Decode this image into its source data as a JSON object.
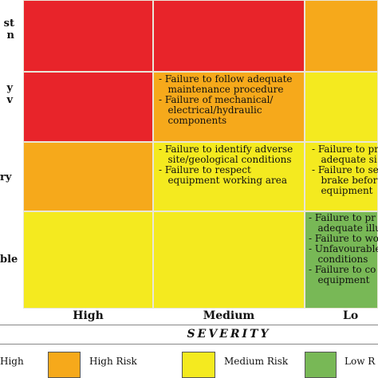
{
  "colors": {
    "high": "#e8242a",
    "high_med": "#f6a91b",
    "medium": "#f4ea1f",
    "low": "#78b856",
    "border": "#e9e6d8"
  },
  "rows": [
    {
      "label": "st\nn"
    },
    {
      "label": "y\nv"
    },
    {
      "label": "ry"
    },
    {
      "label": "ble"
    }
  ],
  "cells": {
    "r0c0": {
      "risk": "high",
      "text": ""
    },
    "r0c1": {
      "risk": "high",
      "text": ""
    },
    "r0c2": {
      "risk": "high_med",
      "text": ""
    },
    "r1c0": {
      "risk": "high",
      "text": ""
    },
    "r1c1": {
      "risk": "high_med",
      "text": "- Failure to follow adequate\n   maintenance procedure\n- Failure of mechanical/\n   electrical/hydraulic\n   components"
    },
    "r1c2": {
      "risk": "medium",
      "text": ""
    },
    "r2c0": {
      "risk": "high_med",
      "text": ""
    },
    "r2c1": {
      "risk": "medium",
      "text": "- Failure to identify adverse\n   site/geological conditions\n- Failure to respect\n   equipment working area"
    },
    "r2c2": {
      "risk": "medium",
      "text": "- Failure to pr\n   adequate si\n- Failure to se\n   brake before\n   equipment"
    },
    "r3c0": {
      "risk": "medium",
      "text": ""
    },
    "r3c1": {
      "risk": "medium",
      "text": ""
    },
    "r3c2": {
      "risk": "low",
      "text": "- Failure to pr\n   adequate illu\n- Failure to wo\n- Unfavourable\n   conditions\n- Failure to co\n   equipment"
    }
  },
  "columns": [
    {
      "label": "High"
    },
    {
      "label": "Medium"
    },
    {
      "label": "Lo"
    }
  ],
  "axis_label": "SEVERITY",
  "legend": [
    {
      "label": "High",
      "color": "#e8242a"
    },
    {
      "label": "High Risk",
      "color": "#f6a91b"
    },
    {
      "label": "Medium Risk",
      "color": "#f4ea1f"
    },
    {
      "label": "Low R",
      "color": "#78b856"
    }
  ]
}
